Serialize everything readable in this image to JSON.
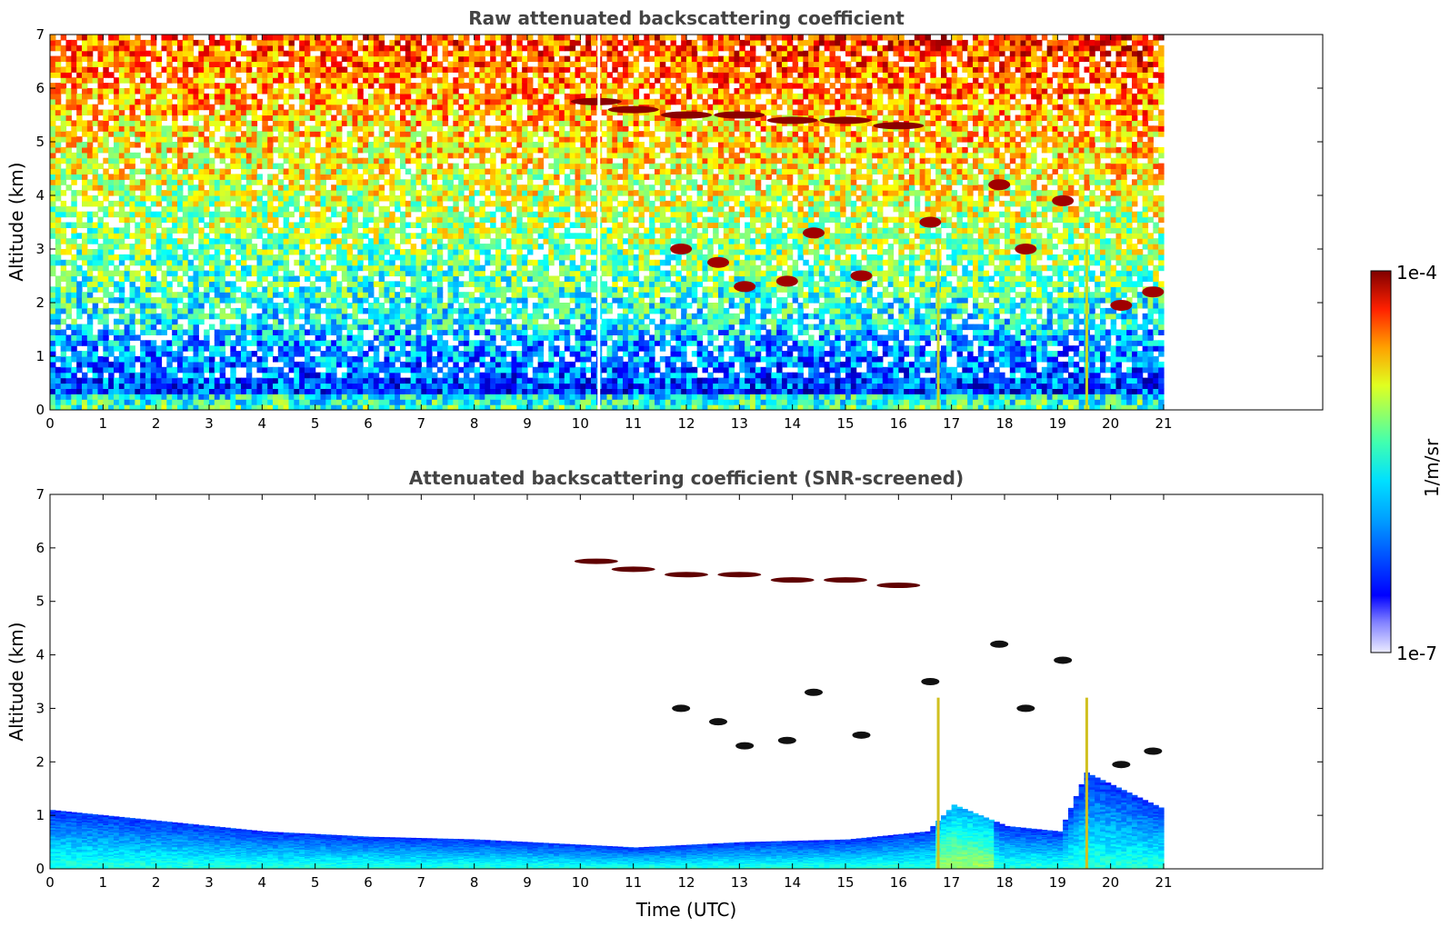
{
  "chart_data": [
    {
      "type": "heatmap",
      "title": "Raw attenuated backscattering coefficient",
      "xlabel": "",
      "ylabel": "Altitude (km)",
      "xlim": [
        0,
        24
      ],
      "ylim": [
        0,
        7
      ],
      "xticks": [
        "0",
        "1",
        "2",
        "3",
        "4",
        "5",
        "6",
        "7",
        "8",
        "9",
        "10",
        "11",
        "12",
        "13",
        "14",
        "15",
        "16",
        "17",
        "18",
        "19",
        "20",
        "21"
      ],
      "yticks": [
        "0",
        "1",
        "2",
        "3",
        "4",
        "5",
        "6",
        "7"
      ],
      "data_extent_x": [
        0,
        21
      ],
      "grid": false,
      "features": {
        "surface_layer": {
          "x": [
            0,
            21
          ],
          "top_km": [
            0.25,
            0.15,
            0.2,
            0.25,
            0.3,
            0.3,
            0.3,
            0.35
          ]
        },
        "upper_cloud": [
          [
            10.3,
            5.75
          ],
          [
            11.0,
            5.6
          ],
          [
            12.0,
            5.5
          ],
          [
            13.0,
            5.5
          ],
          [
            14.0,
            5.4
          ],
          [
            15.0,
            5.4
          ],
          [
            16.0,
            5.3
          ]
        ],
        "mid_clouds": [
          [
            11.9,
            3.0
          ],
          [
            12.6,
            2.75
          ],
          [
            13.1,
            2.3
          ],
          [
            13.9,
            2.4
          ],
          [
            14.4,
            3.3
          ],
          [
            15.3,
            2.5
          ],
          [
            16.6,
            3.5
          ],
          [
            17.9,
            4.2
          ],
          [
            18.4,
            3.0
          ],
          [
            19.1,
            3.9
          ],
          [
            20.2,
            1.95
          ],
          [
            20.8,
            2.2
          ]
        ],
        "vertical_streaks_x": [
          10.35,
          16.75,
          19.55
        ]
      }
    },
    {
      "type": "heatmap",
      "title": "Attenuated backscattering coefficient (SNR-screened)",
      "xlabel": "Time (UTC)",
      "ylabel": "Altitude (km)",
      "xlim": [
        0,
        24
      ],
      "ylim": [
        0,
        7
      ],
      "xticks": [
        "0",
        "1",
        "2",
        "3",
        "4",
        "5",
        "6",
        "7",
        "8",
        "9",
        "10",
        "11",
        "12",
        "13",
        "14",
        "15",
        "16",
        "17",
        "18",
        "19",
        "20",
        "21"
      ],
      "yticks": [
        "0",
        "1",
        "2",
        "3",
        "4",
        "5",
        "6",
        "7"
      ],
      "data_extent_x": [
        0,
        21
      ],
      "grid": false,
      "features": {
        "boundary_layer_top_km": [
          [
            0,
            1.1
          ],
          [
            2,
            0.9
          ],
          [
            4,
            0.7
          ],
          [
            6,
            0.6
          ],
          [
            8,
            0.55
          ],
          [
            10,
            0.45
          ],
          [
            11,
            0.4
          ],
          [
            13,
            0.5
          ],
          [
            15,
            0.55
          ],
          [
            16.5,
            0.7
          ],
          [
            17,
            1.2
          ],
          [
            18,
            0.8
          ],
          [
            19,
            0.7
          ],
          [
            19.5,
            1.8
          ],
          [
            21,
            1.1
          ]
        ]
      }
    }
  ],
  "colorbar": {
    "label": "1/m/sr",
    "max_label": "1e-4",
    "min_label": "1e-7",
    "scale": "log",
    "colormap": "jet"
  },
  "colors": {
    "title": "#444444",
    "axis": "#000000",
    "cmap_stops": [
      "#e8e8ff",
      "#0000ff",
      "#00c8ff",
      "#00ffa0",
      "#ffff00",
      "#ff8000",
      "#ff0000",
      "#800000"
    ]
  }
}
